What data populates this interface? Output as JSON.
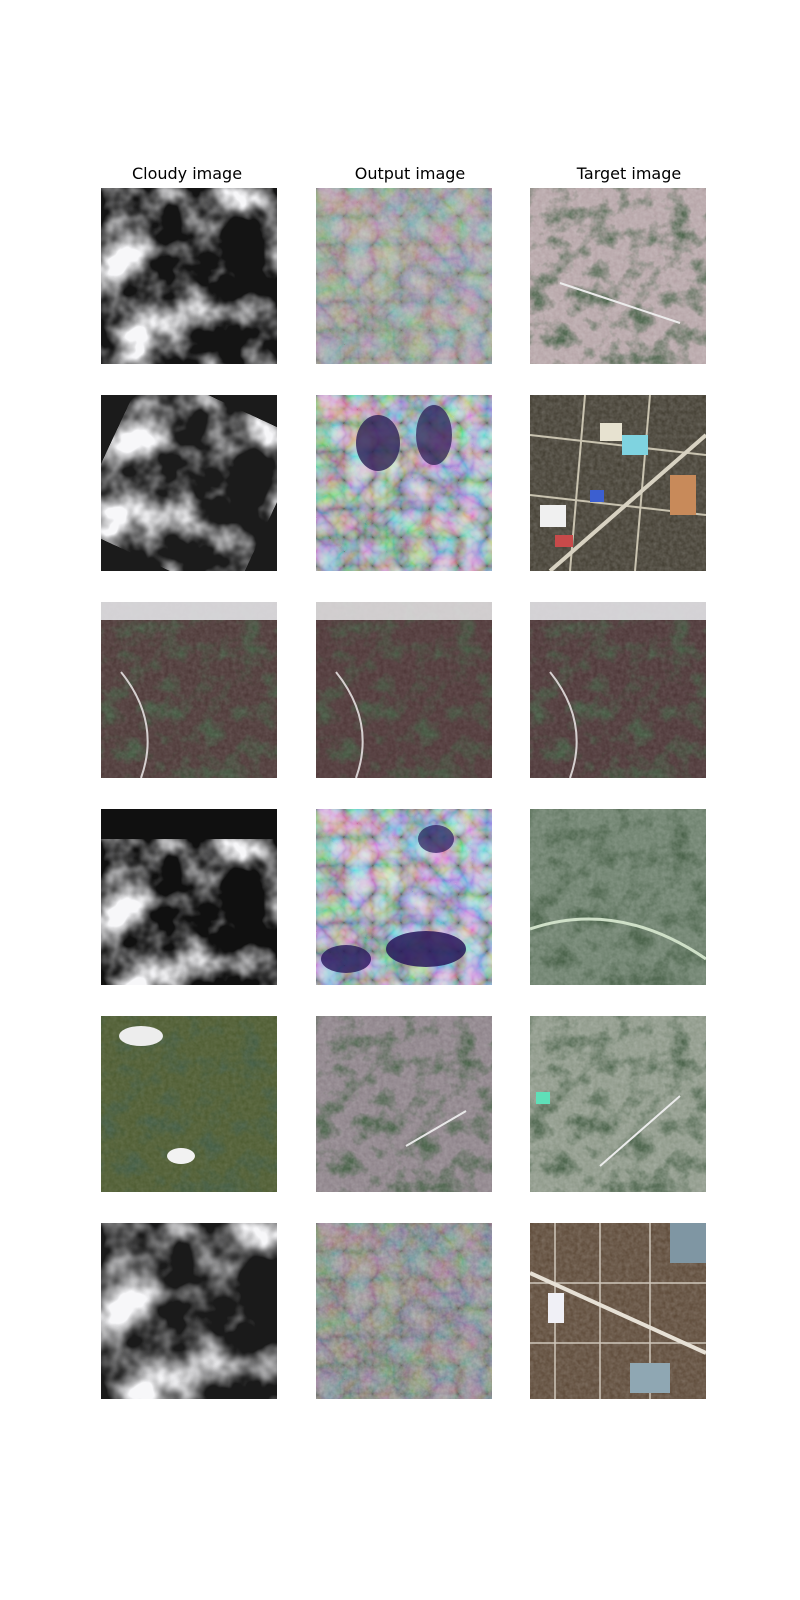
{
  "columns": [
    {
      "title": "Cloudy image"
    },
    {
      "title": "Output image"
    },
    {
      "title": "Target image"
    }
  ],
  "rows": [
    {
      "cloudy": "thick-cloud-dark-gaps",
      "output": "reconstructed-pastel-texture",
      "target": "urban-gray-with-dark-woods"
    },
    {
      "cloudy": "thick-cloud-diagonal",
      "output": "reconstructed-purple-green-blobs",
      "target": "fields-grid-roads"
    },
    {
      "cloudy": "mountains-thin-cloud-top",
      "output": "mountains-reconstructed",
      "target": "mountains-clear"
    },
    {
      "cloudy": "cloud-band-center",
      "output": "reconstructed-purple-teal-artifacts",
      "target": "green-fields-hills"
    },
    {
      "cloudy": "forest-small-clouds",
      "output": "reconstructed-pink-green-mix",
      "target": "forest-clearings"
    },
    {
      "cloudy": "fluffy-cloud-cover",
      "output": "reconstructed-noisy-texture",
      "target": "village-grid-road"
    }
  ],
  "colors": {
    "cloud": "#e6e6e8",
    "shadow": "#111111",
    "forest": "#1f3a1f",
    "soil": "#5a3b32",
    "urban": "#b9a9a9",
    "artifact_purple": "#3a2a7a",
    "artifact_teal": "#5c8f86"
  }
}
